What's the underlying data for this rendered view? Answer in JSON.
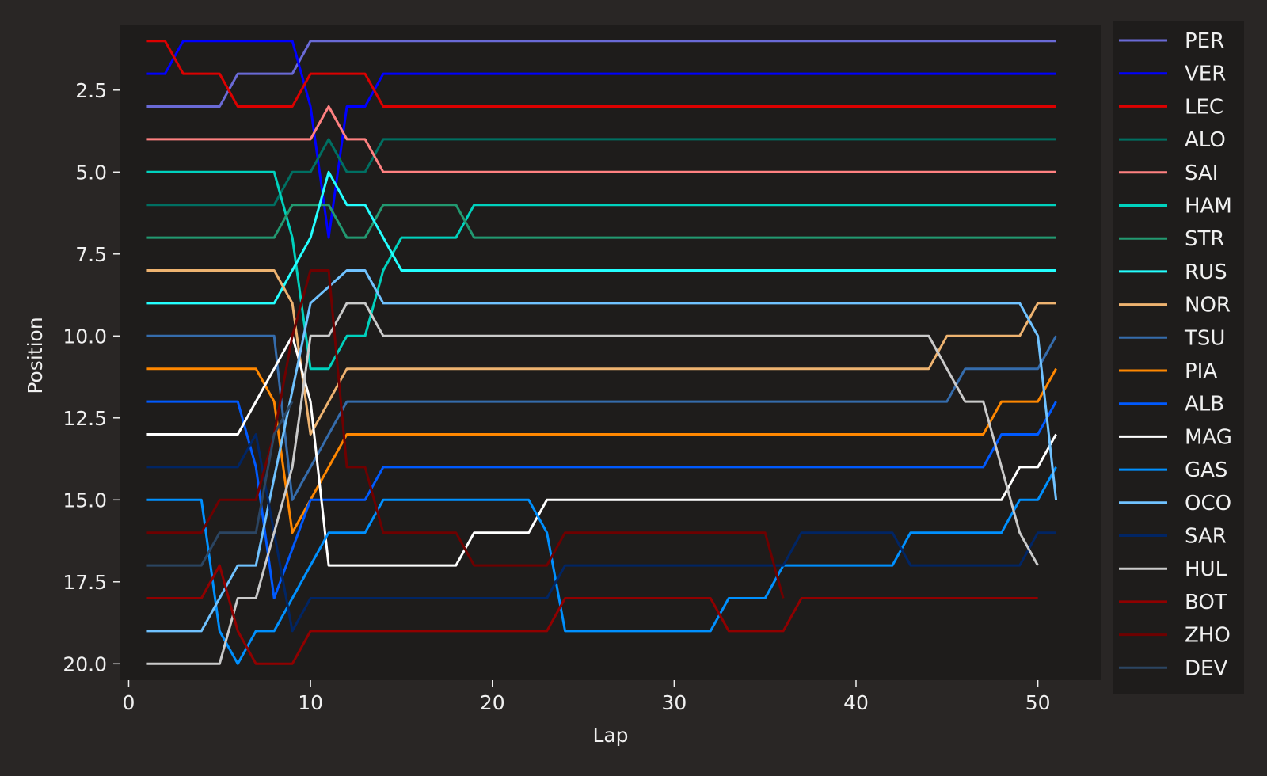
{
  "chart_data": {
    "type": "line",
    "title": "",
    "xlabel": "Lap",
    "ylabel": "Position",
    "xlim": [
      -0.5,
      53.5
    ],
    "ylim": [
      20.5,
      0.5
    ],
    "y_inverted": true,
    "xticks": [
      0,
      10,
      20,
      30,
      40,
      50
    ],
    "xtick_labels": [
      "0",
      "10",
      "20",
      "30",
      "40",
      "50"
    ],
    "yticks": [
      2.5,
      5.0,
      7.5,
      10.0,
      12.5,
      15.0,
      17.5,
      20.0
    ],
    "ytick_labels": [
      "2.5",
      "5.0",
      "7.5",
      "10.0",
      "12.5",
      "15.0",
      "17.5",
      "20.0"
    ],
    "grid": false,
    "legend_position": "outside-right",
    "colors": {
      "figure_bg": "#292625",
      "axes_bg": "#1e1c1b",
      "text": "#f0f0f0",
      "legend_bg": "#1e1c1b"
    },
    "series": [
      {
        "name": "PER",
        "color": "#6a6ad6",
        "x": [
          1,
          5,
          6,
          9,
          10,
          51
        ],
        "y": [
          3,
          3,
          2,
          2,
          1,
          1
        ]
      },
      {
        "name": "VER",
        "color": "#0000ff",
        "x": [
          1,
          2,
          3,
          9,
          10,
          11,
          12,
          13,
          14,
          51
        ],
        "y": [
          2,
          2,
          1,
          1,
          3,
          7,
          3,
          3,
          2,
          2
        ]
      },
      {
        "name": "LEC",
        "color": "#dc0000",
        "x": [
          1,
          2,
          3,
          5,
          6,
          9,
          10,
          13,
          14,
          51
        ],
        "y": [
          1,
          1,
          2,
          2,
          3,
          3,
          2,
          2,
          3,
          3
        ]
      },
      {
        "name": "ALO",
        "color": "#006f62",
        "x": [
          1,
          8,
          9,
          10,
          11,
          12,
          13,
          14,
          51
        ],
        "y": [
          6,
          6,
          5,
          5,
          4,
          5,
          5,
          4,
          4
        ]
      },
      {
        "name": "SAI",
        "color": "#ff8181",
        "x": [
          1,
          10,
          11,
          12,
          13,
          14,
          51
        ],
        "y": [
          4,
          4,
          3,
          4,
          4,
          5,
          5
        ]
      },
      {
        "name": "HAM",
        "color": "#00d2be",
        "x": [
          1,
          8,
          9,
          10,
          11,
          12,
          13,
          14,
          15,
          18,
          19,
          51
        ],
        "y": [
          5,
          5,
          7,
          11,
          11,
          10,
          10,
          8,
          7,
          7,
          6,
          6
        ]
      },
      {
        "name": "STR",
        "color": "#229971",
        "x": [
          1,
          8,
          9,
          11,
          12,
          13,
          14,
          18,
          19,
          51
        ],
        "y": [
          7,
          7,
          6,
          6,
          7,
          7,
          6,
          6,
          7,
          7
        ]
      },
      {
        "name": "RUS",
        "color": "#24ffff",
        "x": [
          1,
          8,
          10,
          11,
          12,
          13,
          15,
          51
        ],
        "y": [
          9,
          9,
          7,
          5,
          6,
          6,
          8,
          8
        ]
      },
      {
        "name": "NOR",
        "color": "#eeb370",
        "x": [
          1,
          8,
          9,
          10,
          12,
          44,
          45,
          49,
          50,
          51
        ],
        "y": [
          8,
          8,
          9,
          13,
          11,
          11,
          10,
          10,
          9,
          9
        ]
      },
      {
        "name": "TSU",
        "color": "#356cac",
        "x": [
          1,
          8,
          9,
          12,
          45,
          46,
          50,
          51
        ],
        "y": [
          10,
          10,
          15,
          12,
          12,
          11,
          11,
          10
        ]
      },
      {
        "name": "PIA",
        "color": "#ff8700",
        "x": [
          1,
          7,
          8,
          9,
          12,
          47,
          48,
          50,
          51
        ],
        "y": [
          11,
          11,
          12,
          16,
          13,
          13,
          12,
          12,
          11
        ]
      },
      {
        "name": "ALB",
        "color": "#005aff",
        "x": [
          1,
          6,
          7,
          8,
          10,
          13,
          14,
          47,
          48,
          50,
          51
        ],
        "y": [
          12,
          12,
          14,
          18,
          15,
          15,
          14,
          14,
          13,
          13,
          12
        ]
      },
      {
        "name": "MAG",
        "color": "#ffffff",
        "x": [
          1,
          6,
          9,
          10,
          11,
          18,
          19,
          22,
          23,
          48,
          49,
          50,
          51
        ],
        "y": [
          13,
          13,
          10,
          12,
          17,
          17,
          16,
          16,
          15,
          15,
          14,
          14,
          13
        ]
      },
      {
        "name": "GAS",
        "color": "#0090ff",
        "x": [
          1,
          4,
          5,
          6,
          7,
          8,
          11,
          13,
          14,
          22,
          23,
          24,
          32,
          33,
          35,
          36,
          42,
          43,
          48,
          49,
          50,
          51
        ],
        "y": [
          15,
          15,
          19,
          20,
          19,
          19,
          16,
          16,
          15,
          15,
          16,
          19,
          19,
          18,
          18,
          17,
          17,
          16,
          16,
          15,
          15,
          14
        ]
      },
      {
        "name": "OCO",
        "color": "#70c2ff",
        "x": [
          1,
          4,
          6,
          7,
          10,
          12,
          13,
          14,
          49,
          50,
          51
        ],
        "y": [
          19,
          19,
          17,
          17,
          9,
          8,
          8,
          9,
          9,
          10,
          15
        ]
      },
      {
        "name": "SAR",
        "color": "#012564",
        "x": [
          1,
          6,
          7,
          9,
          10,
          23,
          24,
          36,
          37,
          42,
          43,
          49,
          50,
          51
        ],
        "y": [
          14,
          14,
          13,
          19,
          18,
          18,
          17,
          17,
          16,
          16,
          17,
          17,
          16,
          16
        ]
      },
      {
        "name": "HUL",
        "color": "#cacaca",
        "x": [
          1,
          5,
          6,
          7,
          9,
          10,
          11,
          12,
          13,
          14,
          44,
          46,
          47,
          49,
          50
        ],
        "y": [
          20,
          20,
          18,
          18,
          14,
          10,
          10,
          9,
          9,
          10,
          10,
          12,
          12,
          16,
          17
        ]
      },
      {
        "name": "BOT",
        "color": "#900000",
        "x": [
          1,
          4,
          5,
          6,
          7,
          8,
          9,
          10,
          11,
          12,
          13,
          14,
          18,
          19,
          23,
          24,
          32,
          33,
          35,
          36,
          37,
          50
        ],
        "y": [
          18,
          18,
          17,
          19,
          20,
          20,
          20,
          19,
          19,
          19,
          19,
          19,
          19,
          19,
          19,
          18,
          18,
          19,
          19,
          19,
          18,
          18
        ]
      },
      {
        "name": "ZHO",
        "color": "#6e0000",
        "x": [
          1,
          4,
          5,
          7,
          8,
          9,
          10,
          11,
          12,
          13,
          14,
          18,
          19,
          23,
          24,
          35,
          36
        ],
        "y": [
          16,
          16,
          15,
          15,
          13,
          10,
          8,
          8,
          14,
          14,
          16,
          16,
          17,
          17,
          16,
          16,
          18
        ]
      },
      {
        "name": "DEV",
        "color": "#2b4562",
        "x": [
          1,
          4,
          5,
          7,
          8,
          9
        ],
        "y": [
          17,
          17,
          16,
          16,
          13,
          12
        ]
      }
    ]
  }
}
